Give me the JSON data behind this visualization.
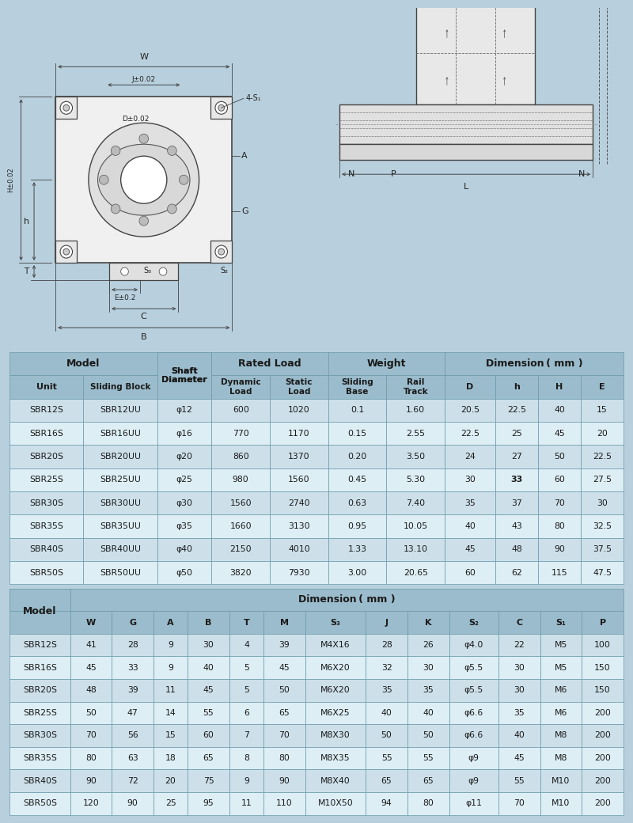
{
  "bg_color": "#b8d0de",
  "white_bg": "#ffffff",
  "table_header_bg": "#9bbccc",
  "table_row_bg1": "#cde0ea",
  "table_row_bg2": "#ddeef5",
  "table_border_color": "#6a9aaa",
  "text_color": "#1a1a1a",
  "diagram_line_color": "#555555",
  "diagram_line_color2": "#333333",
  "table1_rows": [
    [
      "SBR12S",
      "SBR12UU",
      "φ12",
      "600",
      "1020",
      "0.1",
      "1.60",
      "20.5",
      "22.5",
      "40",
      "15"
    ],
    [
      "SBR16S",
      "SBR16UU",
      "φ16",
      "770",
      "1170",
      "0.15",
      "2.55",
      "22.5",
      "25",
      "45",
      "20"
    ],
    [
      "SBR20S",
      "SBR20UU",
      "φ20",
      "860",
      "1370",
      "0.20",
      "3.50",
      "24",
      "27",
      "50",
      "22.5"
    ],
    [
      "SBR25S",
      "SBR25UU",
      "φ25",
      "980",
      "1560",
      "0.45",
      "5.30",
      "30",
      "33",
      "60",
      "27.5"
    ],
    [
      "SBR30S",
      "SBR30UU",
      "φ30",
      "1560",
      "2740",
      "0.63",
      "7.40",
      "35",
      "37",
      "70",
      "30"
    ],
    [
      "SBR35S",
      "SBR35UU",
      "φ35",
      "1660",
      "3130",
      "0.95",
      "10.05",
      "40",
      "43",
      "80",
      "32.5"
    ],
    [
      "SBR40S",
      "SBR40UU",
      "φ40",
      "2150",
      "4010",
      "1.33",
      "13.10",
      "45",
      "48",
      "90",
      "37.5"
    ],
    [
      "SBR50S",
      "SBR50UU",
      "φ50",
      "3820",
      "7930",
      "3.00",
      "20.65",
      "60",
      "62",
      "115",
      "47.5"
    ]
  ],
  "table1_bold_row": 3,
  "table1_bold_col": 8,
  "table2_rows": [
    [
      "SBR12S",
      "41",
      "28",
      "9",
      "30",
      "4",
      "39",
      "M4X16",
      "28",
      "26",
      "φ4.0",
      "22",
      "M5",
      "100"
    ],
    [
      "SBR16S",
      "45",
      "33",
      "9",
      "40",
      "5",
      "45",
      "M6X20",
      "32",
      "30",
      "φ5.5",
      "30",
      "M5",
      "150"
    ],
    [
      "SBR20S",
      "48",
      "39",
      "11",
      "45",
      "5",
      "50",
      "M6X20",
      "35",
      "35",
      "φ5.5",
      "30",
      "M6",
      "150"
    ],
    [
      "SBR25S",
      "50",
      "47",
      "14",
      "55",
      "6",
      "65",
      "M6X25",
      "40",
      "40",
      "φ6.6",
      "35",
      "M6",
      "200"
    ],
    [
      "SBR30S",
      "70",
      "56",
      "15",
      "60",
      "7",
      "70",
      "M8X30",
      "50",
      "50",
      "φ6.6",
      "40",
      "M8",
      "200"
    ],
    [
      "SBR35S",
      "80",
      "63",
      "18",
      "65",
      "8",
      "80",
      "M8X35",
      "55",
      "55",
      "φ9",
      "45",
      "M8",
      "200"
    ],
    [
      "SBR40S",
      "90",
      "72",
      "20",
      "75",
      "9",
      "90",
      "M8X40",
      "65",
      "65",
      "φ9",
      "55",
      "M10",
      "200"
    ],
    [
      "SBR50S",
      "120",
      "90",
      "25",
      "95",
      "11",
      "110",
      "M10X50",
      "94",
      "80",
      "φ11",
      "70",
      "M10",
      "200"
    ]
  ]
}
